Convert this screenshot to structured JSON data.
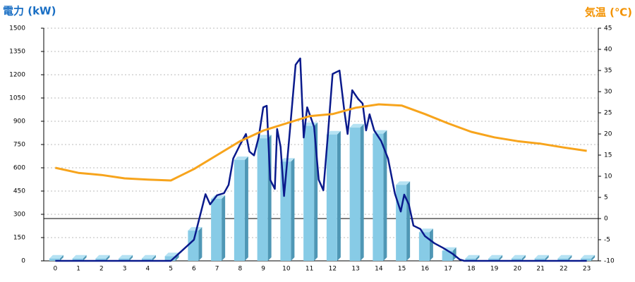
{
  "chart_data": {
    "type": "bar",
    "ylabel": "電力 (kW)",
    "y2label": "気温 (℃)",
    "ylabel_color": "#1a6fc4",
    "y2label_color": "#f39200",
    "categories": [
      "0",
      "1",
      "2",
      "3",
      "4",
      "5",
      "6",
      "7",
      "8",
      "9",
      "10",
      "11",
      "12",
      "13",
      "14",
      "15",
      "16",
      "17",
      "18",
      "19",
      "20",
      "21",
      "22",
      "23"
    ],
    "ylim": [
      0,
      1500
    ],
    "yticks": [
      0,
      150,
      300,
      450,
      600,
      750,
      900,
      1050,
      1200,
      1350,
      1500
    ],
    "y2lim": [
      -10,
      45
    ],
    "y2ticks": [
      -10,
      -5,
      0,
      5,
      10,
      15,
      20,
      25,
      30,
      35,
      40,
      45
    ],
    "grid": true,
    "series": [
      {
        "type": "bar",
        "color": "#87cbe6",
        "values": [
          15,
          15,
          15,
          15,
          15,
          30,
          195,
          400,
          650,
          790,
          640,
          870,
          815,
          860,
          820,
          490,
          185,
          65,
          15,
          15,
          15,
          15,
          15,
          15
        ]
      },
      {
        "type": "line",
        "color": "#0a1a8c",
        "x": [
          0,
          5.0,
          5.5,
          6.0,
          6.5,
          6.7,
          7.0,
          7.3,
          7.5,
          7.7,
          8.0,
          8.25,
          8.4,
          8.6,
          8.8,
          9.0,
          9.15,
          9.3,
          9.5,
          9.6,
          9.75,
          9.9,
          10.1,
          10.4,
          10.6,
          10.75,
          10.9,
          11.2,
          11.4,
          11.6,
          11.8,
          12.0,
          12.3,
          12.5,
          12.65,
          12.85,
          13.1,
          13.3,
          13.45,
          13.6,
          13.8,
          14.1,
          14.4,
          14.7,
          14.95,
          15.1,
          15.3,
          15.5,
          15.8,
          16.0,
          16.4,
          16.8,
          17.2,
          17.5,
          17.7,
          23
        ],
        "values": [
          0,
          0,
          68,
          136,
          430,
          364,
          423,
          436,
          490,
          660,
          750,
          818,
          705,
          680,
          795,
          990,
          1000,
          523,
          464,
          850,
          736,
          418,
          750,
          1264,
          1305,
          795,
          990,
          864,
          523,
          455,
          818,
          1205,
          1227,
          977,
          818,
          1100,
          1045,
          1014,
          841,
          945,
          841,
          773,
          660,
          432,
          318,
          427,
          364,
          227,
          205,
          159,
          114,
          82,
          45,
          9,
          0,
          0
        ]
      },
      {
        "type": "line",
        "axis": "y2",
        "color": "#f7a41c",
        "values": [
          12,
          10.8,
          10.3,
          9.5,
          9.2,
          9,
          11.7,
          15,
          18.3,
          20.8,
          22.5,
          24.2,
          24.7,
          26.2,
          27,
          26.7,
          24.7,
          22.5,
          20.5,
          19.2,
          18.3,
          17.7,
          16.8,
          16
        ]
      }
    ]
  }
}
